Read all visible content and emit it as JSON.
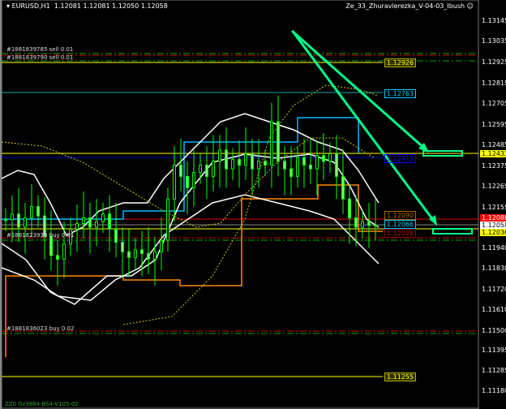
{
  "header": {
    "symbol": "EURUSD,H1",
    "ohlc": "1.12081 1.12081 1.12050 1.12058",
    "expert": "Ze_33_Zhuravlerezka_V-04-03_Ibush ☺"
  },
  "axis": {
    "ticks": [
      "1.13145",
      "1.13035",
      "1.12925",
      "1.12815",
      "1.12705",
      "1.12595",
      "1.12485",
      "1.12375",
      "1.12265",
      "1.12155",
      "1.11940",
      "1.11830",
      "1.11720",
      "1.11610",
      "1.11500",
      "1.11395",
      "1.11285",
      "1.11180"
    ]
  },
  "price_labels": {
    "yellow": "1.12433",
    "red": "1.12088",
    "bid": "1.12058",
    "ask": "1.12036"
  },
  "tags": {
    "t1": "1.12926",
    "t2": "1.12763",
    "t3": "1.12415",
    "t4": "1.12090",
    "t5": "1.12066",
    "t6": "1.12028",
    "t7": "1.11255"
  },
  "orders": [
    "#1881839785 sell 0.01",
    "#1881839790 sell 0.01",
    "#1881823930 buy 0.01",
    "#1881836023 buy 0.02"
  ],
  "footer": "ZZ0 Gz3884-BS4-V105-02",
  "colors": {
    "bull": "#00ff00",
    "bear": "#7cfc00",
    "accent": "#00ff7f",
    "level": "#ffff00"
  },
  "closes": [
    1.1209,
    1.1212,
    1.1205,
    1.121,
    1.1216,
    1.1211,
    1.12,
    1.119,
    1.1188,
    1.1196,
    1.1204,
    1.1207,
    1.121,
    1.1205,
    1.1208,
    1.1212,
    1.1204,
    1.1197,
    1.1192,
    1.1189,
    1.1193,
    1.1191,
    1.1188,
    1.1192,
    1.1198,
    1.122,
    1.1238,
    1.1232,
    1.1226,
    1.1234,
    1.1238,
    1.1232,
    1.124,
    1.1246,
    1.1236,
    1.1241,
    1.1238,
    1.1244,
    1.1236,
    1.124,
    1.1238,
    1.1261,
    1.124,
    1.1236,
    1.1232,
    1.1242,
    1.1238,
    1.1236,
    1.1243,
    1.124,
    1.1244,
    1.1232,
    1.122,
    1.121,
    1.1205,
    1.1208,
    1.1206,
    1.1206
  ]
}
